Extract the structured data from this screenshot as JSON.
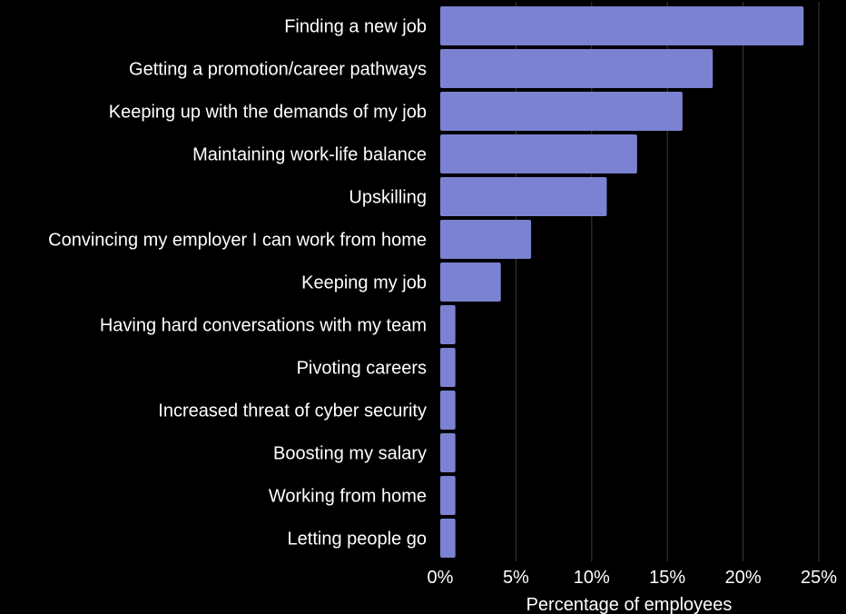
{
  "chart_data": {
    "type": "bar",
    "orientation": "horizontal",
    "categories": [
      "Finding a new job",
      "Getting a promotion/career pathways",
      "Keeping up with the demands of my job",
      "Maintaining work-life balance",
      "Upskilling",
      "Convincing my employer I can work from home",
      "Keeping my job",
      "Having hard conversations with my team",
      "Pivoting careers",
      "Increased threat of cyber security",
      "Boosting my salary",
      "Working from home",
      "Letting people go"
    ],
    "values": [
      24,
      18,
      16,
      13,
      11,
      6,
      4,
      1,
      1,
      1,
      1,
      1,
      1
    ],
    "title": "",
    "xlabel": "Percentage of employees",
    "ylabel": "",
    "xlim": [
      0,
      25
    ],
    "x_ticks": [
      0,
      5,
      10,
      15,
      20,
      25
    ],
    "x_tick_labels": [
      "0%",
      "5%",
      "10%",
      "15%",
      "20%",
      "25%"
    ],
    "grid": "vertical",
    "legend": "none",
    "colors": {
      "bar": "#7b82d1",
      "background": "#000000",
      "text": "#ffffff",
      "grid": "#3a3a3a"
    }
  }
}
